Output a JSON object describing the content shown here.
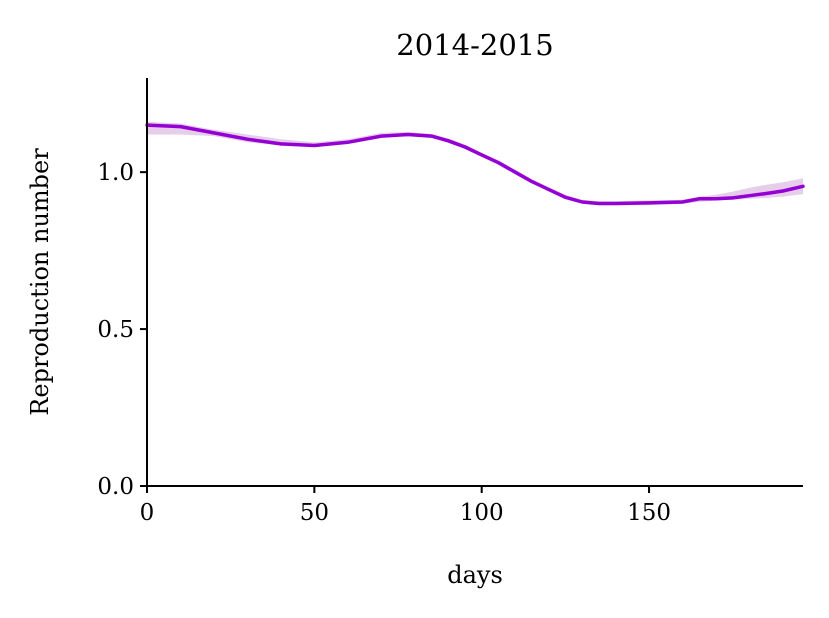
{
  "chart_data": {
    "type": "line",
    "title": "2014-2015",
    "xlabel": "days",
    "ylabel": "Reproduction number",
    "xlim": [
      0,
      196
    ],
    "ylim": [
      0,
      1.3
    ],
    "x_ticks": [
      "0",
      "50",
      "100",
      "150"
    ],
    "y_ticks": [
      "0.0",
      "0.5",
      "1.0"
    ],
    "x_tick_values": [
      0,
      50,
      100,
      150
    ],
    "y_tick_values": [
      0,
      0.5,
      1.0
    ],
    "grid": false,
    "line_color": "#9400D3",
    "band_color": "#E2C6E8",
    "series": [
      {
        "x": [
          0,
          10,
          20,
          30,
          40,
          50,
          60,
          70,
          78,
          85,
          90,
          95,
          100,
          105,
          110,
          115,
          120,
          125,
          130,
          135,
          140,
          150,
          160,
          165,
          170,
          175,
          180,
          185,
          190,
          196
        ],
        "y": [
          1.15,
          1.145,
          1.125,
          1.105,
          1.09,
          1.085,
          1.095,
          1.115,
          1.12,
          1.115,
          1.1,
          1.08,
          1.055,
          1.03,
          1.0,
          0.97,
          0.945,
          0.92,
          0.905,
          0.9,
          0.9,
          0.902,
          0.905,
          0.915,
          0.915,
          0.918,
          0.925,
          0.932,
          0.94,
          0.955
        ],
        "lower": [
          1.12,
          1.12,
          1.115,
          1.095,
          1.085,
          1.08,
          1.09,
          1.11,
          1.115,
          1.11,
          1.095,
          1.075,
          1.05,
          1.025,
          0.995,
          0.965,
          0.94,
          0.915,
          0.9,
          0.895,
          0.895,
          0.895,
          0.9,
          0.905,
          0.91,
          0.912,
          0.915,
          0.918,
          0.922,
          0.93
        ],
        "upper": [
          1.16,
          1.155,
          1.135,
          1.12,
          1.105,
          1.095,
          1.105,
          1.125,
          1.128,
          1.122,
          1.108,
          1.088,
          1.062,
          1.038,
          1.008,
          0.978,
          0.952,
          0.928,
          0.912,
          0.907,
          0.907,
          0.91,
          0.912,
          0.922,
          0.928,
          0.938,
          0.95,
          0.96,
          0.968,
          0.98
        ]
      }
    ]
  }
}
